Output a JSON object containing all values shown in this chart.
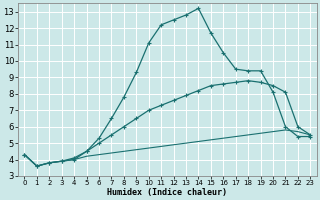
{
  "xlabel": "Humidex (Indice chaleur)",
  "bg_color": "#cce8e8",
  "grid_color": "#d4ecec",
  "line_color": "#1a7070",
  "xlim": [
    -0.5,
    23.5
  ],
  "ylim": [
    3.0,
    13.5
  ],
  "xticks": [
    0,
    1,
    2,
    3,
    4,
    5,
    6,
    7,
    8,
    9,
    10,
    11,
    12,
    13,
    14,
    15,
    16,
    17,
    18,
    19,
    20,
    21,
    22,
    23
  ],
  "yticks": [
    3,
    4,
    5,
    6,
    7,
    8,
    9,
    10,
    11,
    12,
    13
  ],
  "line1_x": [
    0,
    1,
    2,
    3,
    4,
    5,
    6,
    7,
    8,
    9,
    10,
    11,
    12,
    13,
    14,
    15,
    16,
    17,
    18,
    19,
    20,
    21,
    22,
    23
  ],
  "line1_y": [
    4.3,
    3.6,
    3.8,
    3.9,
    4.0,
    4.5,
    5.3,
    6.5,
    7.8,
    9.3,
    11.1,
    12.2,
    12.5,
    12.8,
    13.2,
    11.7,
    10.5,
    9.5,
    9.4,
    9.4,
    8.1,
    6.0,
    5.4,
    5.4
  ],
  "line2_x": [
    0,
    1,
    2,
    3,
    4,
    5,
    6,
    7,
    8,
    9,
    10,
    11,
    12,
    13,
    14,
    15,
    16,
    17,
    18,
    19,
    20,
    21,
    22,
    23
  ],
  "line2_y": [
    4.3,
    3.6,
    3.8,
    3.9,
    4.1,
    4.5,
    5.0,
    5.5,
    6.0,
    6.5,
    7.0,
    7.3,
    7.6,
    7.9,
    8.2,
    8.5,
    8.6,
    8.7,
    8.8,
    8.7,
    8.5,
    8.1,
    6.0,
    5.5
  ],
  "line3_x": [
    0,
    1,
    2,
    3,
    4,
    5,
    6,
    7,
    8,
    9,
    10,
    11,
    12,
    13,
    14,
    15,
    16,
    17,
    18,
    19,
    20,
    21,
    22,
    23
  ],
  "line3_y": [
    4.3,
    3.6,
    3.8,
    3.9,
    4.0,
    4.2,
    4.3,
    4.4,
    4.5,
    4.6,
    4.7,
    4.8,
    4.9,
    5.0,
    5.1,
    5.2,
    5.3,
    5.4,
    5.5,
    5.6,
    5.7,
    5.8,
    5.7,
    5.5
  ]
}
